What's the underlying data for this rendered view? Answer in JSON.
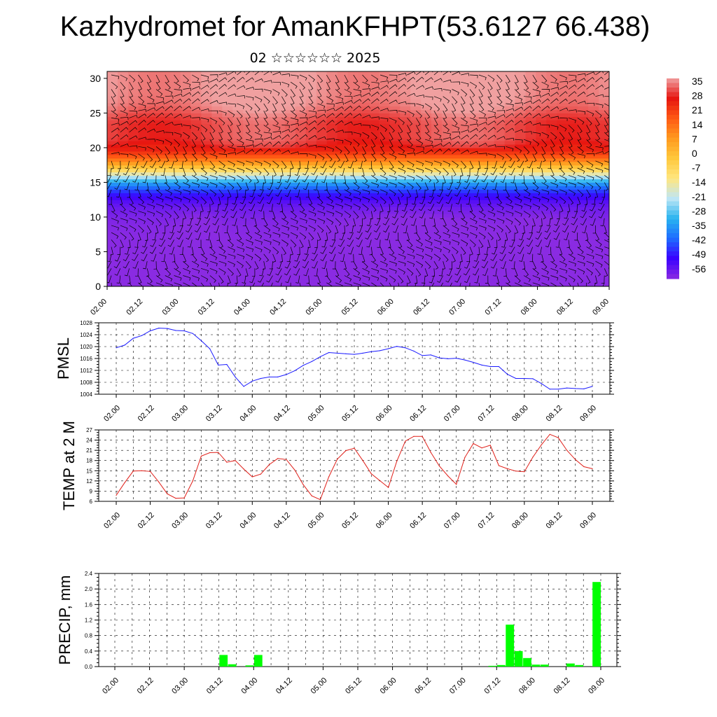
{
  "header": {
    "title": "Kazhydromet for AmanKFHPT(53.6127 66.438)",
    "subtitle": "02 ☆☆☆☆☆☆ 2025"
  },
  "colors": {
    "pmsl_line": "#1a1aff",
    "temp_line": "#e0201a",
    "precip_bar": "#00ff00",
    "cross_section_palette": [
      "#8a2be2",
      "#3a00ff",
      "#1e6cff",
      "#28b4f0",
      "#bfe6f5",
      "#ffe680",
      "#ffc83c",
      "#ff9a1e",
      "#ff5a14",
      "#e61410",
      "#f0a0a0"
    ]
  },
  "chart_data": [
    {
      "type": "heatmap",
      "name": "cross-section",
      "x_ticks": [
        "02.00",
        "02.12",
        "03.00",
        "03.12",
        "04.00",
        "04.12",
        "05.00",
        "05.12",
        "06.00",
        "06.12",
        "07.00",
        "07.12",
        "08.00",
        "08.12",
        "09.00"
      ],
      "y_ticks": [
        "0",
        "5",
        "10",
        "15",
        "20",
        "25",
        "30"
      ],
      "ylim": [
        0,
        31
      ],
      "colorbar_labels": [
        "35",
        "28",
        "21",
        "14",
        "7",
        "0",
        "-7",
        "-14",
        "-21",
        "-28",
        "-35",
        "-42",
        "-49",
        "-56"
      ],
      "overlay": "wind barbs",
      "legend_position": "right"
    },
    {
      "type": "line",
      "ylabel": "PMSL",
      "x_ticks": [
        "02.00",
        "02.12",
        "03.00",
        "03.12",
        "04.00",
        "04.12",
        "05.00",
        "05.12",
        "06.00",
        "06.12",
        "07.00",
        "07.12",
        "08.00",
        "08.12",
        "09.00"
      ],
      "y_ticks": [
        "1004",
        "1008",
        "1012",
        "1016",
        "1020",
        "1024",
        "1028"
      ],
      "ylim": [
        1004,
        1028
      ],
      "grid": true,
      "series": [
        {
          "values": [
            1019.6,
            1020.5,
            1022.8,
            1023.7,
            1025.3,
            1026.2,
            1026.1,
            1025.4,
            1025.3,
            1024.4,
            1022.0,
            1019.3,
            1013.8,
            1014.0,
            1009.8,
            1006.6,
            1008.4,
            1009.3,
            1009.8,
            1009.8,
            1010.6,
            1011.9,
            1013.7,
            1015.0,
            1016.6,
            1018.0,
            1017.8,
            1017.6,
            1017.4,
            1017.8,
            1018.3,
            1018.6,
            1019.3,
            1020.1,
            1019.6,
            1018.5,
            1017.0,
            1017.2,
            1016.2,
            1015.9,
            1016.1,
            1015.5,
            1014.7,
            1013.8,
            1013.3,
            1013.3,
            1010.7,
            1009.3,
            1009.3,
            1009.2,
            1007.6,
            1005.7,
            1005.7,
            1006.1,
            1005.9,
            1005.8,
            1006.6
          ]
        }
      ]
    },
    {
      "type": "line",
      "ylabel": "TEMP at 2 M",
      "x_ticks": [
        "02.00",
        "02.12",
        "03.00",
        "03.12",
        "04.00",
        "04.12",
        "05.00",
        "05.12",
        "06.00",
        "06.12",
        "07.00",
        "07.12",
        "08.00",
        "08.12",
        "09.00"
      ],
      "y_ticks": [
        "6",
        "9",
        "12",
        "15",
        "18",
        "21",
        "24",
        "27"
      ],
      "ylim": [
        6,
        27
      ],
      "grid": true,
      "series": [
        {
          "values": [
            7.8,
            11.5,
            14.9,
            15.0,
            14.8,
            11.7,
            8.2,
            6.9,
            7.0,
            12.0,
            19.3,
            20.3,
            20.4,
            17.5,
            18.0,
            15.5,
            13.2,
            14.0,
            16.8,
            18.6,
            18.3,
            15.2,
            10.9,
            7.6,
            6.5,
            13.2,
            18.4,
            20.9,
            21.6,
            18.0,
            14.1,
            12.1,
            10.1,
            17.8,
            23.7,
            25.1,
            25.1,
            20.4,
            16.4,
            13.5,
            11.0,
            18.9,
            23.0,
            21.7,
            22.5,
            16.5,
            15.6,
            14.9,
            14.7,
            19.0,
            22.6,
            25.7,
            24.7,
            21.0,
            18.3,
            16.2,
            15.6
          ]
        }
      ]
    },
    {
      "type": "bar",
      "ylabel": "PRECIP, mm",
      "x_ticks": [
        "02.00",
        "02.12",
        "03.00",
        "03.12",
        "04.00",
        "04.12",
        "05.00",
        "05.12",
        "06.00",
        "06.12",
        "07.00",
        "07.12",
        "08.00",
        "08.12",
        "09.00"
      ],
      "y_ticks": [
        "0.0",
        "0.4",
        "0.8",
        "1.2",
        "1.6",
        "2.0",
        "2.4"
      ],
      "ylim": [
        0,
        2.4
      ],
      "grid": true,
      "series": [
        {
          "values": [
            0,
            0,
            0,
            0,
            0,
            0,
            0,
            0,
            0,
            0,
            0,
            0,
            0,
            0.3,
            0.06,
            0,
            0.03,
            0.3,
            0,
            0,
            0,
            0,
            0,
            0,
            0,
            0,
            0,
            0,
            0,
            0,
            0,
            0,
            0,
            0,
            0,
            0,
            0,
            0,
            0,
            0,
            0,
            0,
            0,
            0,
            0.02,
            0.04,
            1.08,
            0.4,
            0.22,
            0.05,
            0.05,
            0,
            0,
            0.08,
            0.04,
            0,
            2.18
          ]
        }
      ]
    }
  ]
}
